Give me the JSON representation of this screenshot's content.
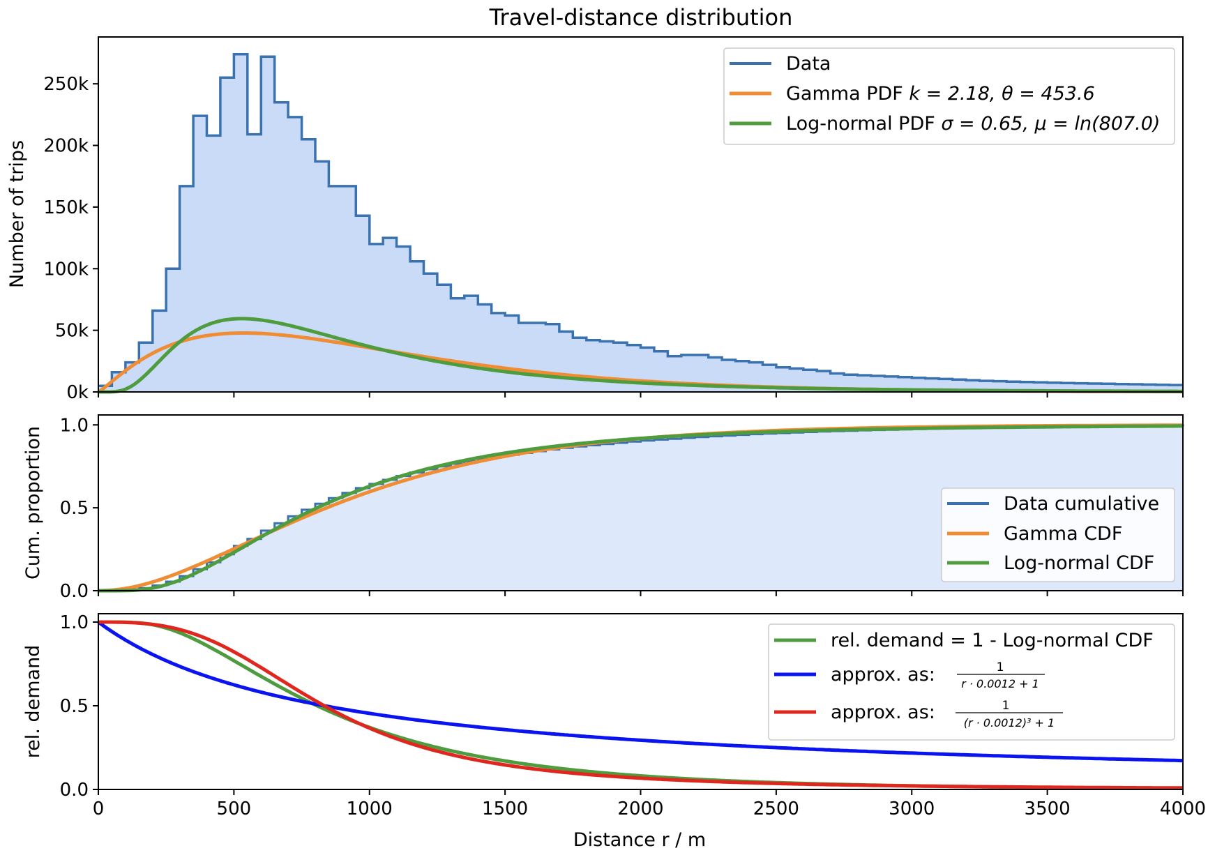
{
  "figure": {
    "title": "Travel-distance distribution",
    "xlabel": "Distance r / m"
  },
  "colors": {
    "data": "#3a72b0",
    "fill": "#c9dbf7",
    "fill_light": "#dde8fa",
    "gamma": "#f08c34",
    "lognormal": "#4e9c3e",
    "blue": "#0a14f0",
    "red": "#e0271f"
  },
  "chart_data": [
    {
      "type": "line",
      "title": "Travel-distance distribution",
      "xlabel": "Distance r / m",
      "ylabel": "Number of trips",
      "xlim": [
        0,
        4000
      ],
      "ylim": [
        0,
        288000
      ],
      "yticks": [
        0,
        50000,
        100000,
        150000,
        200000,
        250000
      ],
      "ytick_labels": [
        "0k",
        "50k",
        "100k",
        "150k",
        "200k",
        "250k"
      ],
      "grid": false,
      "legend_position": "top-right",
      "histogram": {
        "name": "Data",
        "bin_width": 50,
        "bin_start": 0,
        "values": [
          5000,
          16000,
          24000,
          40000,
          66000,
          100000,
          167000,
          224000,
          208000,
          255000,
          274000,
          209000,
          272000,
          235000,
          223000,
          205000,
          187000,
          167000,
          167000,
          143000,
          120000,
          125000,
          118000,
          106000,
          96000,
          87000,
          76000,
          78000,
          71000,
          64000,
          62000,
          56000,
          56000,
          55000,
          49000,
          44000,
          42000,
          41000,
          40000,
          38000,
          36000,
          33000,
          29000,
          30000,
          30000,
          28000,
          26000,
          25000,
          24000,
          22000,
          20000,
          19000,
          18000,
          17000,
          15000,
          14000,
          13500,
          13000,
          12500,
          12000,
          11500,
          11000,
          10500,
          10000,
          9500,
          9000,
          8700,
          8400,
          8100,
          7800,
          7500,
          7200,
          7000,
          6800,
          6600,
          6400,
          6200,
          6000,
          5800,
          5600
        ]
      },
      "series": [
        {
          "name": "Data",
          "legend_label": "Data"
        },
        {
          "name": "Gamma PDF",
          "legend_prefix": "Gamma PDF ",
          "legend_math": "k = 2.18,  θ = 453.6",
          "k": 2.18,
          "theta": 453.6,
          "scale_trips": 63300000.0
        },
        {
          "name": "Log-normal PDF",
          "legend_prefix": "Log-normal PDF ",
          "legend_math": "σ = 0.65,  μ = ln(807.0)",
          "sigma": 0.65,
          "median": 807.0,
          "scale_trips": 63300000.0
        }
      ],
      "xticks": [
        0,
        500,
        1000,
        1500,
        2000,
        2500,
        3000,
        3500,
        4000
      ]
    },
    {
      "type": "line",
      "ylabel": "Cum. proportion",
      "xlim": [
        0,
        4000
      ],
      "ylim": [
        0,
        1.06
      ],
      "yticks": [
        0,
        0.5,
        1.0
      ],
      "ytick_labels": [
        "0.0",
        "0.5",
        "1.0"
      ],
      "legend_position": "center-right",
      "series": [
        {
          "name": "Data cumulative"
        },
        {
          "name": "Gamma CDF"
        },
        {
          "name": "Log-normal CDF"
        }
      ]
    },
    {
      "type": "line",
      "ylabel": "rel. demand",
      "xlabel": "Distance r / m",
      "xlim": [
        0,
        4000
      ],
      "ylim": [
        0,
        1.05
      ],
      "yticks": [
        0,
        0.5,
        1.0
      ],
      "ytick_labels": [
        "0.0",
        "0.5",
        "1.0"
      ],
      "xticks": [
        0,
        500,
        1000,
        1500,
        2000,
        2500,
        3000,
        3500,
        4000
      ],
      "xtick_labels": [
        "0",
        "500",
        "1000",
        "1500",
        "2000",
        "2500",
        "3000",
        "3500",
        "4000"
      ],
      "legend_position": "top-right",
      "series": [
        {
          "name": "rel. demand = 1 - Log-normal CDF",
          "legend_label": "rel. demand = 1 - Log-normal CDF"
        },
        {
          "name": "approx. as: 1/(r·0.0012+1)",
          "legend_label": "approx. as:",
          "formula_num": "1",
          "formula_den": "r · 0.0012 + 1",
          "a": 0.0012,
          "power": 1
        },
        {
          "name": "approx. as: 1/((r·0.0012)^3+1)",
          "legend_label": "approx. as:",
          "formula_num": "1",
          "formula_den": "(r · 0.0012)³ + 1",
          "a": 0.0012,
          "power": 3
        }
      ]
    }
  ]
}
